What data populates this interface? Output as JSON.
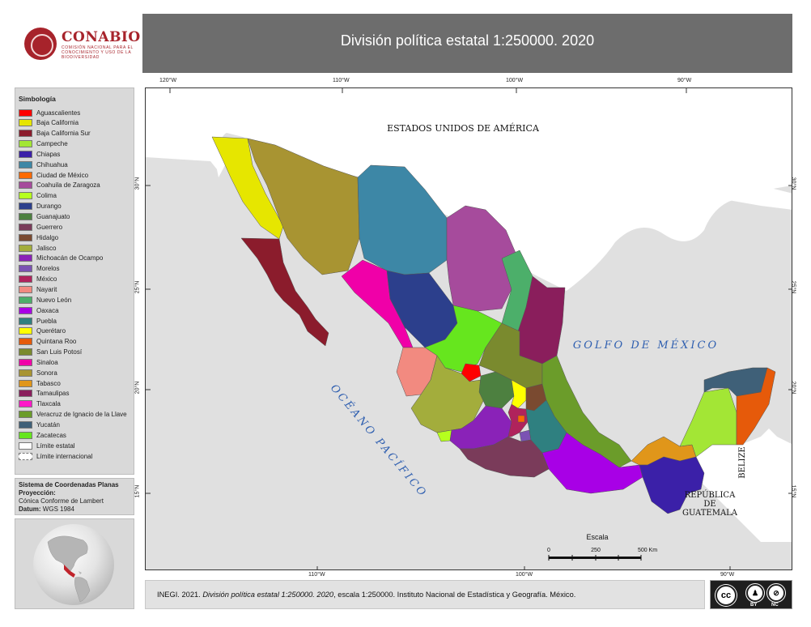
{
  "logo": {
    "name": "CONABIO",
    "subtitle": "COMISIÓN NACIONAL PARA EL CONOCIMIENTO Y USO DE LA BIODIVERSIDAD"
  },
  "title": "División política estatal 1:250000. 2020",
  "legend": {
    "title": "Simbología",
    "items": [
      {
        "label": "Aguascalientes",
        "color": "#ff0000"
      },
      {
        "label": "Baja California",
        "color": "#e6e600"
      },
      {
        "label": "Baja California Sur",
        "color": "#8b1c2c"
      },
      {
        "label": "Campeche",
        "color": "#a3e635"
      },
      {
        "label": "Chiapas",
        "color": "#3b20a8"
      },
      {
        "label": "Chihuahua",
        "color": "#3d87a6"
      },
      {
        "label": "Ciudad de México",
        "color": "#ff6a00"
      },
      {
        "label": "Coahuila de Zaragoza",
        "color": "#a64b9c"
      },
      {
        "label": "Colima",
        "color": "#b6ff1e"
      },
      {
        "label": "Durango",
        "color": "#2c3f8c"
      },
      {
        "label": "Guanajuato",
        "color": "#4d8040"
      },
      {
        "label": "Guerrero",
        "color": "#7a3b5a"
      },
      {
        "label": "Hidalgo",
        "color": "#7a4a30"
      },
      {
        "label": "Jalisco",
        "color": "#a3ad3c"
      },
      {
        "label": "Michoacán de Ocampo",
        "color": "#8a22b8"
      },
      {
        "label": "Morelos",
        "color": "#7b52b3"
      },
      {
        "label": "México",
        "color": "#b0235c"
      },
      {
        "label": "Nayarit",
        "color": "#f28a80"
      },
      {
        "label": "Nuevo León",
        "color": "#4caf6a"
      },
      {
        "label": "Oaxaca",
        "color": "#a800e6"
      },
      {
        "label": "Puebla",
        "color": "#2f8080"
      },
      {
        "label": "Querétaro",
        "color": "#ffff00"
      },
      {
        "label": "Quintana Roo",
        "color": "#e65a0a"
      },
      {
        "label": "San Luis Potosí",
        "color": "#7a8a2e"
      },
      {
        "label": "Sinaloa",
        "color": "#f000a8"
      },
      {
        "label": "Sonora",
        "color": "#a89432"
      },
      {
        "label": "Tabasco",
        "color": "#e0961a"
      },
      {
        "label": "Tamaulipas",
        "color": "#8a1e5c"
      },
      {
        "label": "Tlaxcala",
        "color": "#ff1ac8"
      },
      {
        "label": "Veracruz de Ignacio de la Llave",
        "color": "#6b9c2a"
      },
      {
        "label": "Yucatán",
        "color": "#3f6078"
      },
      {
        "label": "Zacatecas",
        "color": "#66e61e"
      },
      {
        "label": "Límite estatal",
        "color": "#ffffff"
      },
      {
        "label": "Límite internacional",
        "color": "#ffffff"
      }
    ]
  },
  "crs": {
    "system": "Sistema de Coordenadas Planas",
    "projection_label": "Proyección:",
    "projection": "Cónica Conforme de Lambert",
    "datum_label": "Datum:",
    "datum": "WGS 1984"
  },
  "map": {
    "country_usa": "ESTADOS UNIDOS DE AMÉRICA",
    "gulf": "GOLFO DE MÉXICO",
    "ocean": "OCÉANO PACÍFICO",
    "belize": "BELIZE",
    "guatemala_1": "REPÚBLICA",
    "guatemala_2": "DE",
    "guatemala_3": "GUATEMALA",
    "scale_title": "Escala",
    "scale_ticks": [
      "0",
      "250",
      "500 Km"
    ],
    "top_ticks": [
      "120°W",
      "110°W",
      "100°W",
      "90°W"
    ],
    "bottom_ticks": [
      "110°W",
      "100°W",
      "90°W"
    ],
    "left_ticks": [
      "30°N",
      "25°N",
      "20°N",
      "15°N"
    ],
    "right_ticks": [
      "30°N",
      "25°N",
      "20°N",
      "15°N"
    ]
  },
  "citation": {
    "prefix": "INEGI. 2021. ",
    "italic": "División política estatal 1:250000. 2020",
    "suffix": ", escala 1:250000. Instituto Nacional de Estadística y Geografía. México."
  },
  "license": {
    "cc": "cc",
    "by_icon": "by-person-icon",
    "nc_icon": "nc-dollar-icon",
    "by": "BY",
    "nc": "NC"
  }
}
